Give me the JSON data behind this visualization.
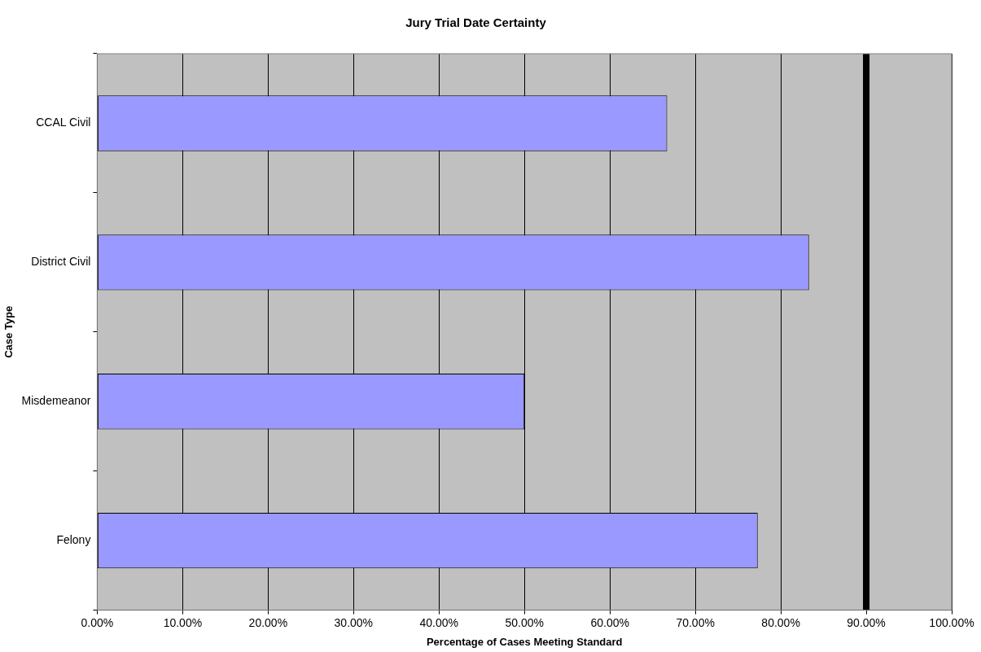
{
  "chart_data": {
    "type": "bar",
    "orientation": "horizontal",
    "title": "Jury Trial Date Certainty",
    "xlabel": "Percentage of Cases Meeting Standard",
    "ylabel": "Case Type",
    "categories": [
      "CCAL Civil",
      "District Civil",
      "Misdemeanor",
      "Felony"
    ],
    "values": [
      66.7,
      83.3,
      50,
      77.3
    ],
    "color": "#9999ff",
    "xlim": [
      0,
      100
    ],
    "xticks": [
      {
        "value": 0,
        "label": "0.00%"
      },
      {
        "value": 10,
        "label": "10.00%"
      },
      {
        "value": 20,
        "label": "20.00%"
      },
      {
        "value": 30,
        "label": "30.00%"
      },
      {
        "value": 40,
        "label": "40.00%"
      },
      {
        "value": 50,
        "label": "50.00%"
      },
      {
        "value": 60,
        "label": "60.00%"
      },
      {
        "value": 70,
        "label": "70.00%"
      },
      {
        "value": 80,
        "label": "80.00%"
      },
      {
        "value": 90,
        "label": "90.00%"
      },
      {
        "value": 100,
        "label": "100.00%"
      }
    ],
    "ref_lines": [
      {
        "axis": "x",
        "value": 90,
        "color": "#000000"
      }
    ],
    "grid": "x",
    "legend": false
  }
}
